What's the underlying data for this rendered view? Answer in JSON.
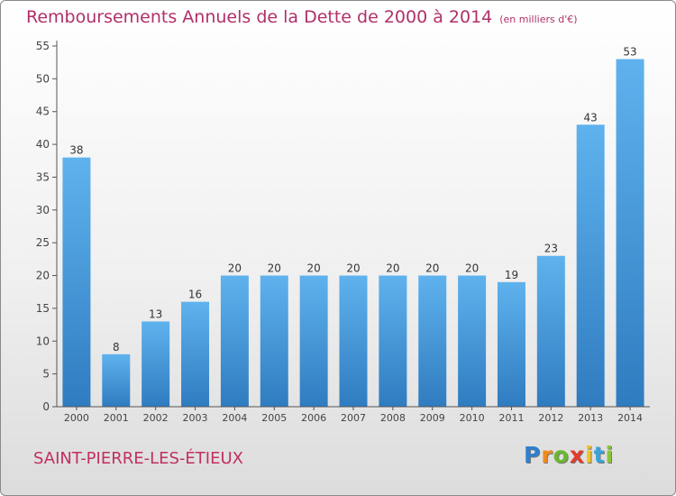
{
  "chart_data": {
    "type": "bar",
    "title": "Remboursements Annuels de la Dette de 2000 à 2014",
    "unit_label": "(en milliers d'€)",
    "categories": [
      "2000",
      "2001",
      "2002",
      "2003",
      "2004",
      "2005",
      "2006",
      "2007",
      "2008",
      "2009",
      "2010",
      "2011",
      "2012",
      "2013",
      "2014"
    ],
    "values": [
      38,
      8,
      13,
      16,
      20,
      20,
      20,
      20,
      20,
      20,
      20,
      19,
      23,
      43,
      53
    ],
    "yticks": [
      "0",
      "5",
      "10",
      "15",
      "20",
      "25",
      "30",
      "35",
      "40",
      "45",
      "50",
      "55"
    ],
    "ylim": [
      0,
      55
    ],
    "grid": false,
    "bar_color": "#4a9de0"
  },
  "commune": "SAINT-PIERRE-LES-ÉTIEUX",
  "logo": {
    "letters": [
      "P",
      "r",
      "o",
      "x",
      "i",
      "t",
      "i"
    ],
    "colors": [
      "#2f7fd0",
      "#f08a1c",
      "#6ab82e",
      "#e33a2c",
      "#f6c21c",
      "#3aa3d8",
      "#8bc33d"
    ]
  }
}
